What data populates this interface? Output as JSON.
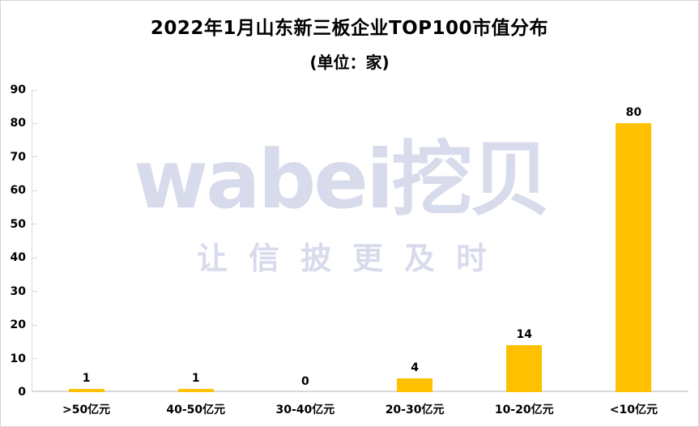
{
  "title": "2022年1月山东新三板企业TOP100市值分布",
  "subtitle": "(单位：家)",
  "watermark": {
    "brand": "wabei挖贝",
    "slogan": "让信披更及时"
  },
  "colors": {
    "bar": "#FFC000",
    "axis": "#D9D9D9",
    "watermark": "#D8DBEB",
    "text": "#000000",
    "background": "#FFFFFF"
  },
  "chart_data": {
    "type": "bar",
    "title": "2022年1月山东新三板企业TOP100市值分布",
    "subtitle": "(单位：家)",
    "categories": [
      ">50亿元",
      "40-50亿元",
      "30-40亿元",
      "20-30亿元",
      "10-20亿元",
      "<10亿元"
    ],
    "values": [
      1,
      1,
      0,
      4,
      14,
      80
    ],
    "data_labels": [
      1,
      1,
      0,
      4,
      14,
      80
    ],
    "xlabel": "",
    "ylabel": "",
    "ylim": [
      0,
      90
    ],
    "ytick_interval": 10,
    "yticks": [
      0,
      10,
      20,
      30,
      40,
      50,
      60,
      70,
      80,
      90
    ],
    "grid": false,
    "legend": "none",
    "bar_color": "#FFC000"
  }
}
